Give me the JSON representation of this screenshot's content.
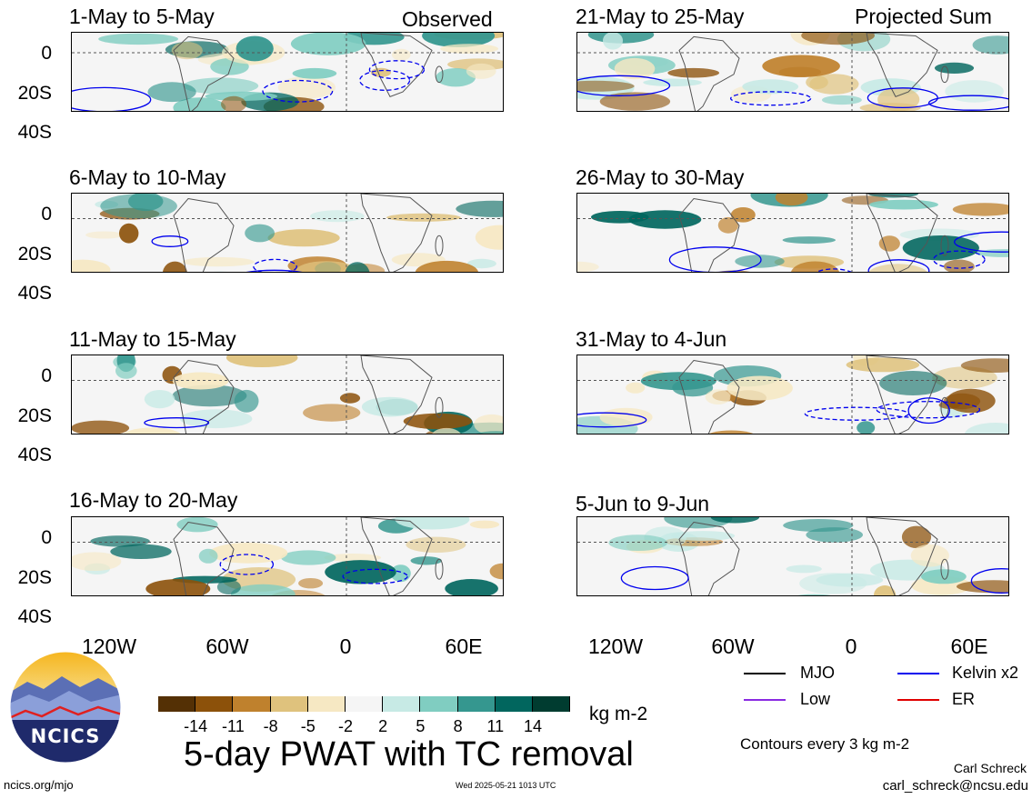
{
  "panels_left": [
    {
      "title": "1-May to 5-May"
    },
    {
      "title": "6-May to 10-May"
    },
    {
      "title": "11-May to 15-May"
    },
    {
      "title": "16-May to 20-May"
    }
  ],
  "panels_right": [
    {
      "title": "21-May to 25-May"
    },
    {
      "title": "26-May to 30-May"
    },
    {
      "title": "31-May to 4-Jun"
    },
    {
      "title": "5-Jun to 9-Jun"
    }
  ],
  "tags": {
    "observed": "Observed",
    "projected": "Projected Sum"
  },
  "axes": {
    "y_ticks": [
      "0",
      "20S",
      "40S"
    ],
    "x_ticks": [
      "120W",
      "60W",
      "0",
      "60E"
    ]
  },
  "colorbar": {
    "colors": [
      "#543005",
      "#8c510a",
      "#bf812d",
      "#dfc27d",
      "#f6e8c3",
      "#f5f5f5",
      "#c7eae5",
      "#80cdc1",
      "#35978f",
      "#01665e",
      "#003c30"
    ],
    "ticks": [
      "-14",
      "-11",
      "-8",
      "-5",
      "-2",
      "2",
      "5",
      "8",
      "11",
      "14"
    ],
    "unit": "kg m-2"
  },
  "main_title": "5-day PWAT with TC removal",
  "legend": {
    "items": [
      {
        "label": "MJO",
        "color": "#000000"
      },
      {
        "label": "Kelvin x2",
        "color": "#0000ee"
      },
      {
        "label": "Low",
        "color": "#8a2be2"
      },
      {
        "label": "ER",
        "color": "#e00000"
      }
    ],
    "contours_note": "Contours every 3 kg m-2"
  },
  "logo": {
    "text": "NCICS"
  },
  "footer": {
    "url": "ncics.org/mjo",
    "timestamp": "Wed 2025-05-21 1013 UTC",
    "author": "Carl Schreck",
    "email": "carl_schreck@ncsu.edu"
  }
}
